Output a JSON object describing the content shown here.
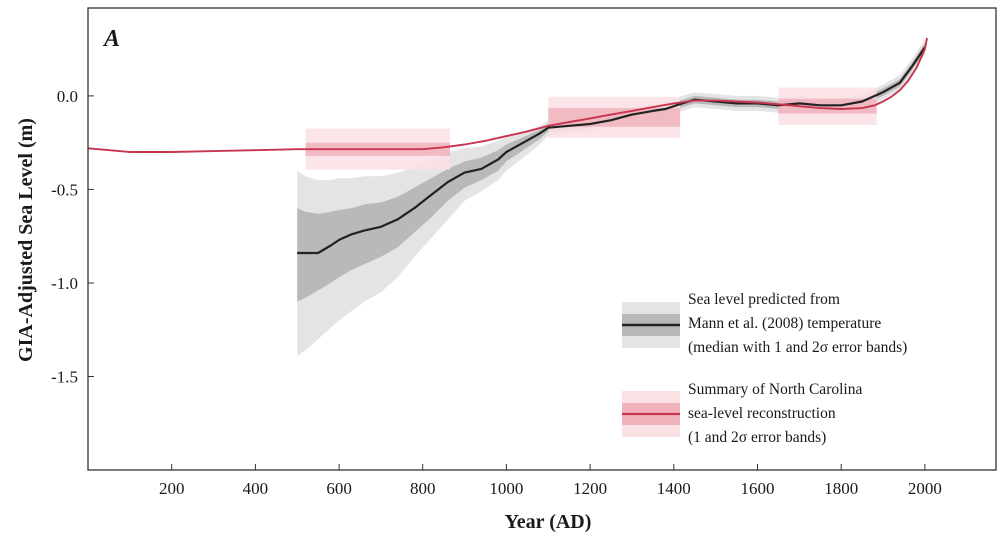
{
  "chart_data": {
    "type": "line",
    "panel_label": "A",
    "xlabel": "Year (AD)",
    "ylabel": "GIA-Adjusted Sea Level (m)",
    "xlim": [
      0,
      2170
    ],
    "ylim": [
      -2.0,
      0.47
    ],
    "x_ticks": [
      200,
      400,
      600,
      800,
      1000,
      1200,
      1400,
      1600,
      1800,
      2000
    ],
    "y_ticks": [
      0.0,
      -0.5,
      -1.0,
      -1.5
    ],
    "y_tick_labels": [
      "0.0",
      "-0.5",
      "-1.0",
      "-1.5"
    ],
    "grid": false,
    "legend_position": "bottom-right",
    "colors": {
      "mann_line": "#222222",
      "mann_band_1sigma": "#b9b9b9",
      "mann_band_2sigma": "#e4e4e4",
      "nc_line": "#c8354f",
      "nc_band_1sigma": "#f0b3bc",
      "nc_band_2sigma": "#fbe0e4"
    },
    "series": [
      {
        "key": "mann",
        "legend": [
          "Sea level predicted from",
          "Mann et al. (2008) temperature",
          "(median with 1 and 2σ error bands)"
        ],
        "x": [
          500,
          520,
          550,
          580,
          600,
          630,
          660,
          700,
          740,
          780,
          820,
          860,
          900,
          940,
          980,
          1000,
          1040,
          1080,
          1100,
          1150,
          1200,
          1250,
          1300,
          1350,
          1380,
          1420,
          1450,
          1500,
          1550,
          1600,
          1650,
          1700,
          1750,
          1800,
          1850,
          1900,
          1940,
          1970,
          2000
        ],
        "median": [
          -0.84,
          -0.84,
          -0.84,
          -0.8,
          -0.77,
          -0.74,
          -0.72,
          -0.7,
          -0.66,
          -0.6,
          -0.53,
          -0.46,
          -0.41,
          -0.39,
          -0.34,
          -0.3,
          -0.25,
          -0.2,
          -0.17,
          -0.16,
          -0.15,
          -0.13,
          -0.1,
          -0.08,
          -0.07,
          -0.04,
          -0.02,
          -0.03,
          -0.04,
          -0.04,
          -0.05,
          -0.04,
          -0.05,
          -0.05,
          -0.03,
          0.02,
          0.07,
          0.16,
          0.26
        ],
        "sigma1_upper": [
          -0.6,
          -0.62,
          -0.63,
          -0.62,
          -0.61,
          -0.6,
          -0.58,
          -0.57,
          -0.54,
          -0.49,
          -0.44,
          -0.39,
          -0.35,
          -0.33,
          -0.29,
          -0.26,
          -0.22,
          -0.18,
          -0.15,
          -0.14,
          -0.13,
          -0.11,
          -0.08,
          -0.06,
          -0.05,
          -0.02,
          0.0,
          -0.01,
          -0.02,
          -0.02,
          -0.03,
          -0.02,
          -0.03,
          -0.03,
          -0.01,
          0.04,
          0.09,
          0.18,
          0.28
        ],
        "sigma1_lower": [
          -1.1,
          -1.08,
          -1.04,
          -1.0,
          -0.97,
          -0.93,
          -0.9,
          -0.86,
          -0.81,
          -0.73,
          -0.65,
          -0.56,
          -0.49,
          -0.45,
          -0.4,
          -0.35,
          -0.29,
          -0.23,
          -0.19,
          -0.18,
          -0.17,
          -0.15,
          -0.12,
          -0.1,
          -0.09,
          -0.06,
          -0.04,
          -0.05,
          -0.06,
          -0.06,
          -0.07,
          -0.06,
          -0.07,
          -0.07,
          -0.05,
          0.0,
          0.05,
          0.14,
          0.24
        ],
        "sigma2_upper": [
          -0.4,
          -0.43,
          -0.45,
          -0.45,
          -0.44,
          -0.44,
          -0.43,
          -0.43,
          -0.41,
          -0.38,
          -0.34,
          -0.3,
          -0.28,
          -0.27,
          -0.24,
          -0.22,
          -0.19,
          -0.16,
          -0.13,
          -0.12,
          -0.11,
          -0.09,
          -0.06,
          -0.04,
          -0.03,
          0.0,
          0.02,
          0.01,
          0.0,
          0.0,
          -0.01,
          0.0,
          -0.01,
          -0.01,
          0.01,
          0.06,
          0.11,
          0.2,
          0.3
        ],
        "sigma2_lower": [
          -1.39,
          -1.36,
          -1.3,
          -1.24,
          -1.2,
          -1.15,
          -1.1,
          -1.05,
          -0.97,
          -0.86,
          -0.76,
          -0.66,
          -0.56,
          -0.51,
          -0.45,
          -0.4,
          -0.33,
          -0.26,
          -0.21,
          -0.2,
          -0.19,
          -0.17,
          -0.14,
          -0.12,
          -0.11,
          -0.08,
          -0.06,
          -0.07,
          -0.08,
          -0.08,
          -0.09,
          -0.08,
          -0.09,
          -0.09,
          -0.07,
          -0.02,
          0.03,
          0.12,
          0.22
        ]
      },
      {
        "key": "north_carolina",
        "legend": [
          "Summary of North Carolina",
          "sea-level reconstruction",
          "(1 and 2σ error bands)"
        ],
        "x": [
          0,
          100,
          200,
          300,
          400,
          500,
          600,
          700,
          800,
          850,
          900,
          950,
          1000,
          1050,
          1100,
          1150,
          1200,
          1250,
          1300,
          1350,
          1400,
          1450,
          1500,
          1550,
          1600,
          1650,
          1700,
          1750,
          1800,
          1850,
          1880,
          1900,
          1920,
          1940,
          1960,
          1980,
          2000,
          2005
        ],
        "y": [
          -0.28,
          -0.3,
          -0.3,
          -0.295,
          -0.29,
          -0.285,
          -0.285,
          -0.285,
          -0.285,
          -0.275,
          -0.26,
          -0.24,
          -0.215,
          -0.19,
          -0.16,
          -0.14,
          -0.12,
          -0.1,
          -0.08,
          -0.06,
          -0.04,
          -0.025,
          -0.025,
          -0.03,
          -0.035,
          -0.045,
          -0.055,
          -0.065,
          -0.07,
          -0.065,
          -0.05,
          -0.03,
          -0.005,
          0.03,
          0.08,
          0.15,
          0.25,
          0.31
        ],
        "error_blocks": [
          {
            "x": [
              520,
              865
            ],
            "center": -0.285,
            "sigma1": 0.035,
            "sigma2": 0.11
          },
          {
            "x": [
              1100,
              1415
            ],
            "center": -0.115,
            "sigma1": 0.05,
            "sigma2": 0.11
          },
          {
            "x": [
              1650,
              1885
            ],
            "center": -0.055,
            "sigma1": 0.04,
            "sigma2": 0.1
          }
        ]
      }
    ]
  }
}
